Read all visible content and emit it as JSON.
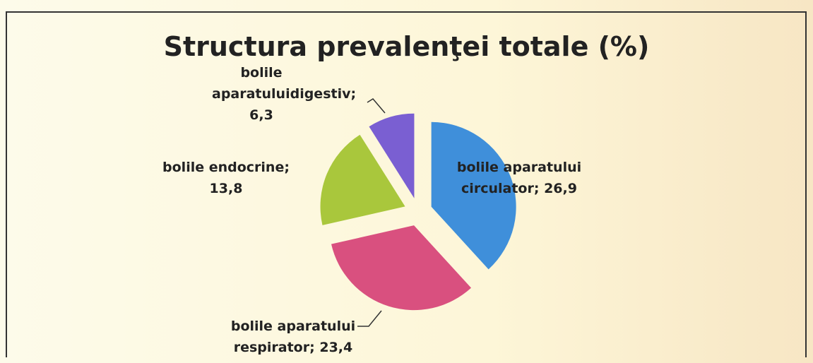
{
  "chart_data": {
    "type": "pie",
    "title": "Structura prevalenţei totale (%)",
    "categories": [
      "bolile aparatului circulator",
      "bolile aparatului respirator",
      "bolile endocrine",
      "bolile aparatuluidigestiv"
    ],
    "values": [
      26.9,
      23.4,
      13.8,
      6.3
    ],
    "value_labels": [
      "26,9",
      "23,4",
      "13,8",
      "6,3"
    ],
    "label_separator": ";",
    "colors": [
      "#3f8fda",
      "#d9507f",
      "#a9c73c",
      "#7a5fd2"
    ]
  }
}
